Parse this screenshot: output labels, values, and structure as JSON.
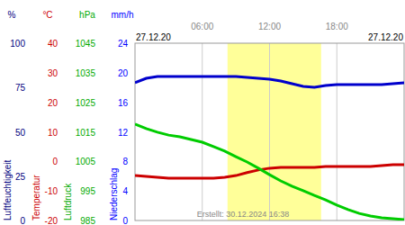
{
  "chart_data": [
    {
      "type": "line",
      "ylabel": "Luftfeuchtigkeit",
      "unit": "%",
      "ylim": [
        0,
        100
      ],
      "yticks": [
        0,
        25,
        50,
        75,
        100
      ],
      "color": "#0000cc",
      "x": [
        0,
        1,
        2,
        3,
        4,
        5,
        6,
        7,
        8,
        9,
        10,
        11,
        12,
        13,
        14,
        15,
        16,
        17,
        18,
        19,
        20,
        21,
        22,
        23,
        24
      ],
      "values": [
        77.7,
        80.2,
        81.2,
        81.2,
        81.2,
        81.2,
        81.2,
        81.2,
        81.2,
        81.2,
        80.7,
        80.2,
        79.7,
        78.7,
        77.2,
        75.6,
        75.1,
        76.1,
        76.6,
        76.6,
        76.6,
        76.6,
        76.6,
        77.2,
        77.7
      ],
      "xlim": [
        0,
        24
      ],
      "xticks": [
        {
          "value": 6,
          "label": "06:00"
        },
        {
          "value": 12,
          "label": "12:00"
        },
        {
          "value": 18,
          "label": "18:00"
        }
      ],
      "grid": true,
      "daylight": [
        8.25,
        16.6
      ],
      "annotations": [
        "27.12.20",
        "27.12.20",
        "Erstellt: 30.12.2024 16:38"
      ]
    },
    {
      "type": "line",
      "ylabel": "Temperatur",
      "unit": "°C",
      "ylim": [
        -20,
        40
      ],
      "yticks": [
        -20,
        -10,
        0,
        10,
        20,
        30,
        40
      ],
      "color": "#cc0000",
      "x": [
        0,
        1,
        2,
        3,
        4,
        5,
        6,
        7,
        8,
        9,
        10,
        11,
        12,
        13,
        14,
        15,
        16,
        17,
        18,
        19,
        20,
        21,
        22,
        23,
        24
      ],
      "values": [
        -4.8,
        -5.1,
        -5.4,
        -5.7,
        -5.7,
        -5.7,
        -5.7,
        -5.7,
        -5.4,
        -4.8,
        -3.8,
        -2.9,
        -2.3,
        -2.0,
        -2.0,
        -2.0,
        -2.0,
        -1.7,
        -1.7,
        -1.7,
        -1.7,
        -1.7,
        -1.4,
        -1.1,
        -1.1
      ]
    },
    {
      "type": "line",
      "ylabel": "Luftdruck",
      "unit": "hPa",
      "ylim": [
        985,
        1045
      ],
      "yticks": [
        985,
        995,
        1005,
        1015,
        1025,
        1035,
        1045
      ],
      "color": "#00cc00",
      "x": [
        0,
        1,
        2,
        3,
        4,
        5,
        6,
        7,
        8,
        9,
        10,
        11,
        12,
        13,
        14,
        15,
        16,
        17,
        18,
        19,
        20,
        21,
        22,
        23,
        24
      ],
      "values": [
        1017.6,
        1016.1,
        1014.9,
        1013.9,
        1013.3,
        1012.4,
        1011.5,
        1010.0,
        1008.5,
        1006.6,
        1004.8,
        1002.7,
        1000.5,
        998.4,
        996.6,
        995.1,
        993.5,
        992.0,
        990.2,
        988.7,
        987.4,
        986.5,
        985.9,
        985.6,
        985.3
      ]
    },
    {
      "type": "line",
      "ylabel": "Niederschlag",
      "unit": "mm/h",
      "ylim": [
        0,
        24
      ],
      "yticks": [
        0,
        4,
        8,
        12,
        16,
        20,
        24
      ],
      "color": "#0000ff"
    }
  ]
}
